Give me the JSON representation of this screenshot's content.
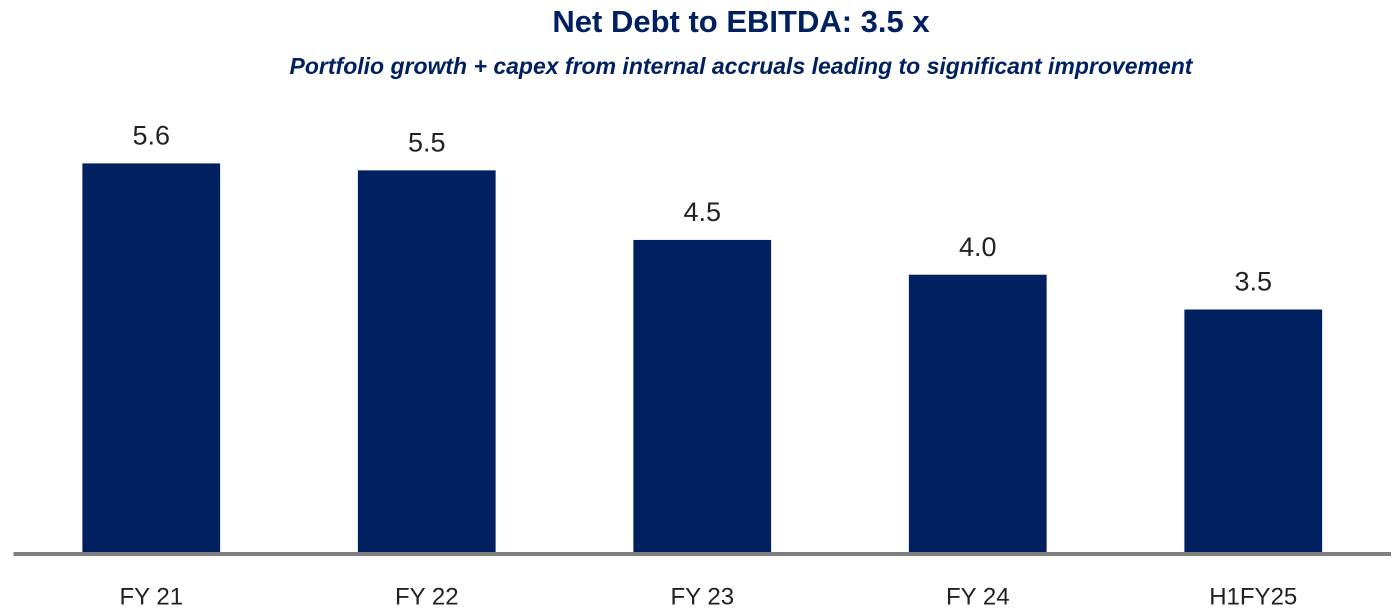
{
  "chart_data": {
    "type": "bar",
    "title": "Net Debt to EBITDA: 3.5 x",
    "subtitle": "Portfolio growth + capex from internal accruals leading to significant improvement",
    "categories": [
      "FY 21",
      "FY 22",
      "FY 23",
      "FY 24",
      "H1FY25"
    ],
    "values": [
      5.6,
      5.5,
      4.5,
      4.0,
      3.5
    ],
    "value_labels": [
      "5.6",
      "5.5",
      "4.5",
      "4.0",
      "3.5"
    ],
    "color": "#002060",
    "ylim": [
      0,
      7
    ]
  }
}
